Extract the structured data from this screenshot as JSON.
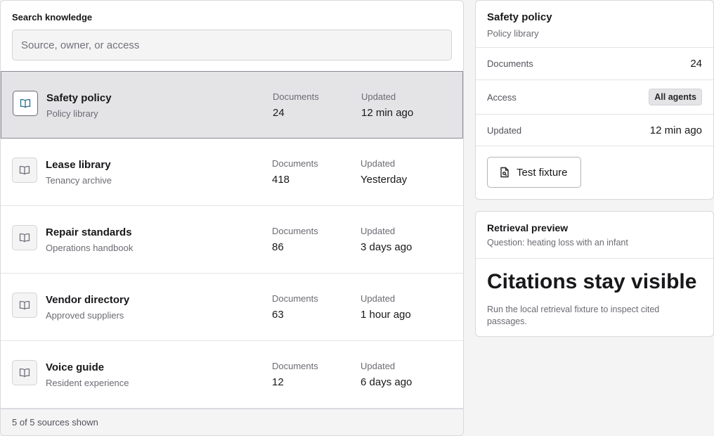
{
  "search": {
    "label": "Search knowledge",
    "placeholder": "Source, owner, or access",
    "value": ""
  },
  "sources": [
    {
      "title": "Safety policy",
      "subtitle": "Policy library",
      "documents_label": "Documents",
      "documents": "24",
      "updated_label": "Updated",
      "updated": "12 min ago",
      "selected": true,
      "icon": "book-icon"
    },
    {
      "title": "Lease library",
      "subtitle": "Tenancy archive",
      "documents_label": "Documents",
      "documents": "418",
      "updated_label": "Updated",
      "updated": "Yesterday",
      "selected": false,
      "icon": "book-icon"
    },
    {
      "title": "Repair standards",
      "subtitle": "Operations handbook",
      "documents_label": "Documents",
      "documents": "86",
      "updated_label": "Updated",
      "updated": "3 days ago",
      "selected": false,
      "icon": "book-icon"
    },
    {
      "title": "Vendor directory",
      "subtitle": "Approved suppliers",
      "documents_label": "Documents",
      "documents": "63",
      "updated_label": "Updated",
      "updated": "1 hour ago",
      "selected": false,
      "icon": "book-icon"
    },
    {
      "title": "Voice guide",
      "subtitle": "Resident experience",
      "documents_label": "Documents",
      "documents": "12",
      "updated_label": "Updated",
      "updated": "6 days ago",
      "selected": false,
      "icon": "book-icon"
    }
  ],
  "footer": {
    "count_text": "5 of 5 sources shown"
  },
  "detail": {
    "title": "Safety policy",
    "subtitle": "Policy library",
    "documents_label": "Documents",
    "documents": "24",
    "access_label": "Access",
    "access": "All agents",
    "updated_label": "Updated",
    "updated": "12 min ago",
    "button_label": "Test fixture",
    "button_icon": "file-search-icon"
  },
  "preview": {
    "title": "Retrieval preview",
    "question": "Question: heating loss with an infant",
    "headline": "Citations stay visible",
    "description": "Run the local retrieval fixture to inspect cited passages."
  },
  "colors": {
    "background": "#f4f4f5",
    "selected_row": "#e4e4e7",
    "selected_icon": "#1f6f8b",
    "text": "#18181b",
    "muted": "#6b6b73"
  }
}
